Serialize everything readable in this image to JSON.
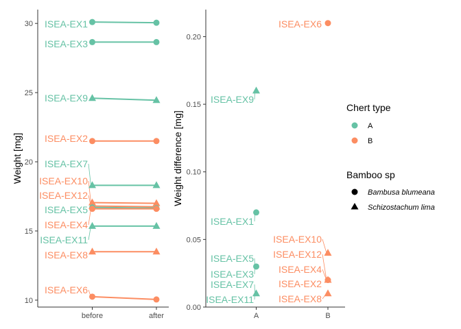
{
  "colors": {
    "A": "#66C2A5",
    "B": "#FC8D62",
    "axis": "#333333",
    "tick_text": "#4d4d4d"
  },
  "chart_data": [
    {
      "type": "line",
      "xlabel": "",
      "ylabel": "Weight [mg]",
      "categories": [
        "before",
        "after"
      ],
      "ylim": [
        9.5,
        31.0
      ],
      "yticks": [
        10,
        15,
        20,
        25,
        30
      ],
      "grid": false,
      "series": [
        {
          "name": "ISEA-EX1",
          "chert_type": "A",
          "bamboo_sp": "Bambusa blumeana",
          "values": [
            30.1,
            30.05
          ]
        },
        {
          "name": "ISEA-EX3",
          "chert_type": "A",
          "bamboo_sp": "Bambusa blumeana",
          "values": [
            28.65,
            28.65
          ]
        },
        {
          "name": "ISEA-EX9",
          "chert_type": "A",
          "bamboo_sp": "Schizostachum lima",
          "values": [
            24.6,
            24.45
          ]
        },
        {
          "name": "ISEA-EX2",
          "chert_type": "B",
          "bamboo_sp": "Bambusa blumeana",
          "values": [
            21.5,
            21.5
          ]
        },
        {
          "name": "ISEA-EX7",
          "chert_type": "A",
          "bamboo_sp": "Schizostachum lima",
          "values": [
            18.3,
            18.3
          ]
        },
        {
          "name": "ISEA-EX10",
          "chert_type": "B",
          "bamboo_sp": "Schizostachum lima",
          "values": [
            17.05,
            17.0
          ]
        },
        {
          "name": "ISEA-EX12",
          "chert_type": "B",
          "bamboo_sp": "Schizostachum lima",
          "values": [
            16.8,
            16.75
          ]
        },
        {
          "name": "ISEA-EX5",
          "chert_type": "A",
          "bamboo_sp": "Bambusa blumeana",
          "values": [
            16.7,
            16.65
          ]
        },
        {
          "name": "ISEA-EX4",
          "chert_type": "B",
          "bamboo_sp": "Bambusa blumeana",
          "values": [
            16.6,
            16.6
          ]
        },
        {
          "name": "ISEA-EX11",
          "chert_type": "A",
          "bamboo_sp": "Schizostachum lima",
          "values": [
            15.35,
            15.35
          ]
        },
        {
          "name": "ISEA-EX8",
          "chert_type": "B",
          "bamboo_sp": "Schizostachum lima",
          "values": [
            13.5,
            13.5
          ]
        },
        {
          "name": "ISEA-EX6",
          "chert_type": "B",
          "bamboo_sp": "Bambusa blumeana",
          "values": [
            10.25,
            10.05
          ]
        }
      ]
    },
    {
      "type": "scatter",
      "xlabel": "",
      "ylabel": "Weight difference [mg]",
      "categories": [
        "A",
        "B"
      ],
      "ylim": [
        0.0,
        0.22
      ],
      "yticks": [
        0.0,
        0.05,
        0.1,
        0.15,
        0.2
      ],
      "ytick_labels": [
        "0.00",
        "0.05",
        "0.10",
        "0.15",
        "0.20"
      ],
      "grid": false,
      "points": [
        {
          "label": "ISEA-EX6",
          "x": "B",
          "y": 0.21,
          "bamboo_sp": "Bambusa blumeana"
        },
        {
          "label": "ISEA-EX9",
          "x": "A",
          "y": 0.16,
          "bamboo_sp": "Schizostachum lima"
        },
        {
          "label": "ISEA-EX1",
          "x": "A",
          "y": 0.07,
          "bamboo_sp": "Bambusa blumeana"
        },
        {
          "label": "ISEA-EX10",
          "x": "B",
          "y": 0.04,
          "bamboo_sp": "Schizostachum lima"
        },
        {
          "label": "ISEA-EX5",
          "x": "A",
          "y": 0.03,
          "bamboo_sp": "Bambusa blumeana"
        },
        {
          "label": "ISEA-EX3",
          "x": "A",
          "y": 0.03,
          "bamboo_sp": "Bambusa blumeana"
        },
        {
          "label": "ISEA-EX12",
          "x": "B",
          "y": 0.02,
          "bamboo_sp": "Schizostachum lima"
        },
        {
          "label": "ISEA-EX4",
          "x": "B",
          "y": 0.02,
          "bamboo_sp": "Bambusa blumeana"
        },
        {
          "label": "ISEA-EX2",
          "x": "B",
          "y": 0.02,
          "bamboo_sp": "Bambusa blumeana"
        },
        {
          "label": "ISEA-EX7",
          "x": "A",
          "y": 0.01,
          "bamboo_sp": "Schizostachum lima"
        },
        {
          "label": "ISEA-EX11",
          "x": "A",
          "y": 0.01,
          "bamboo_sp": "Schizostachum lima"
        },
        {
          "label": "ISEA-EX8",
          "x": "B",
          "y": 0.01,
          "bamboo_sp": "Schizostachum lima"
        }
      ]
    }
  ],
  "legend": {
    "placement": "right",
    "chert_title": "Chert type",
    "chert_items": [
      {
        "label": "A",
        "key": "A"
      },
      {
        "label": "B",
        "key": "B"
      }
    ],
    "bamboo_title": "Bamboo sp",
    "bamboo_items": [
      {
        "label": "Bambusa blumeana",
        "shape": "circle"
      },
      {
        "label": "Schizostachum lima",
        "shape": "triangle"
      }
    ]
  }
}
